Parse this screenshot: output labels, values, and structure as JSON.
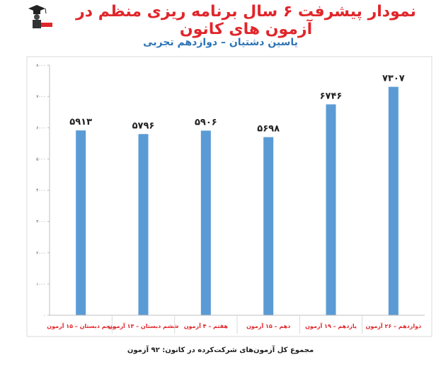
{
  "header": {
    "title": "نمودار پیشرفت ۶ سال برنامه ریزی منظم در آزمون های کانون",
    "subtitle": "یاسین دشتیان – دوازدهم تجربی"
  },
  "footer": {
    "note": "مجموع کل آزمون‌های شرکت‌کرده در کانون:  ۹۲ آزمون"
  },
  "colors": {
    "title": "#e0262b",
    "subtitle": "#2e74b5",
    "bar": "#5b9bd5",
    "axis_labels": "#e0262b",
    "gridline": "#d9d9d9"
  },
  "chart_data": {
    "type": "bar",
    "categories": [
      "پنجم دبستان – ۱۵ آزمون",
      "ششم دبستان – ۱۳ آزمون",
      "هفتم – ۴ آزمون",
      "دهم – ۱۵ آزمون",
      "یازدهم – ۱۹ آزمون",
      "دوازدهم – ۲۶ آزمون"
    ],
    "values": [
      5913,
      5796,
      5906,
      5698,
      6746,
      7307
    ],
    "value_labels": [
      "۵۹۱۳",
      "۵۷۹۶",
      "۵۹۰۶",
      "۵۶۹۸",
      "۶۷۴۶",
      "۷۳۰۷"
    ],
    "ylim": [
      0,
      8000
    ],
    "yticks": [
      0,
      1000,
      2000,
      3000,
      4000,
      5000,
      6000,
      7000,
      8000
    ],
    "ytick_labels": [
      "۰",
      "۱۰۰۰",
      "۲۰۰۰",
      "۳۰۰۰",
      "۴۰۰۰",
      "۵۰۰۰",
      "۶۰۰۰",
      "۷۰۰۰",
      "۸۰۰۰"
    ],
    "grid": false,
    "legend": "none"
  }
}
